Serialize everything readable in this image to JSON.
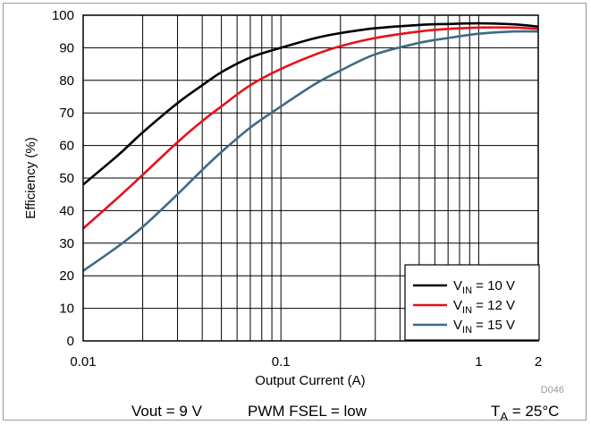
{
  "chart_data": {
    "type": "line",
    "title": "",
    "xlabel": "Output Current (A)",
    "ylabel": "Efficiency (%)",
    "xscale": "log",
    "xlim": [
      0.01,
      2
    ],
    "ylim": [
      0,
      100
    ],
    "x_ticks": [
      0.01,
      0.1,
      1,
      2
    ],
    "x_tick_labels": [
      "0.01",
      "0.1",
      "1",
      "2"
    ],
    "y_ticks": [
      0,
      10,
      20,
      30,
      40,
      50,
      60,
      70,
      80,
      90,
      100
    ],
    "y_tick_labels": [
      "0",
      "10",
      "20",
      "30",
      "40",
      "50",
      "60",
      "70",
      "80",
      "90",
      "100"
    ],
    "grid": true,
    "legend_position": "bottom-right",
    "x": [
      0.01,
      0.015,
      0.02,
      0.03,
      0.04,
      0.05,
      0.07,
      0.1,
      0.15,
      0.2,
      0.3,
      0.5,
      0.7,
      1,
      1.5,
      2
    ],
    "series": [
      {
        "name_main": "V",
        "name_sub": "IN",
        "name_rest": " = 10 V",
        "color": "#000000",
        "values": [
          48,
          57,
          64,
          73,
          78.5,
          82.5,
          87,
          90,
          93,
          94.5,
          96,
          97,
          97.3,
          97.5,
          97.2,
          96.5
        ]
      },
      {
        "name_main": "V",
        "name_sub": "IN",
        "name_rest": " = 12 V",
        "color": "#e8101a",
        "values": [
          34.5,
          44,
          51,
          61,
          67.5,
          72,
          78.5,
          83.5,
          88,
          90.5,
          93,
          95,
          95.8,
          96.2,
          96.2,
          95.8
        ]
      },
      {
        "name_main": "V",
        "name_sub": "IN",
        "name_rest": " = 15 V",
        "color": "#3d6b84",
        "values": [
          21.5,
          29,
          35,
          45,
          52.5,
          58,
          65.5,
          72,
          79,
          83,
          88,
          91.5,
          93,
          94.3,
          95,
          95
        ]
      }
    ],
    "figure_code": "D046",
    "conditions": {
      "vout": "Vout = 9 V",
      "pwm": "PWM FSEL = low",
      "ta_main": "T",
      "ta_sub": "A",
      "ta_rest": " = 25°C"
    }
  }
}
